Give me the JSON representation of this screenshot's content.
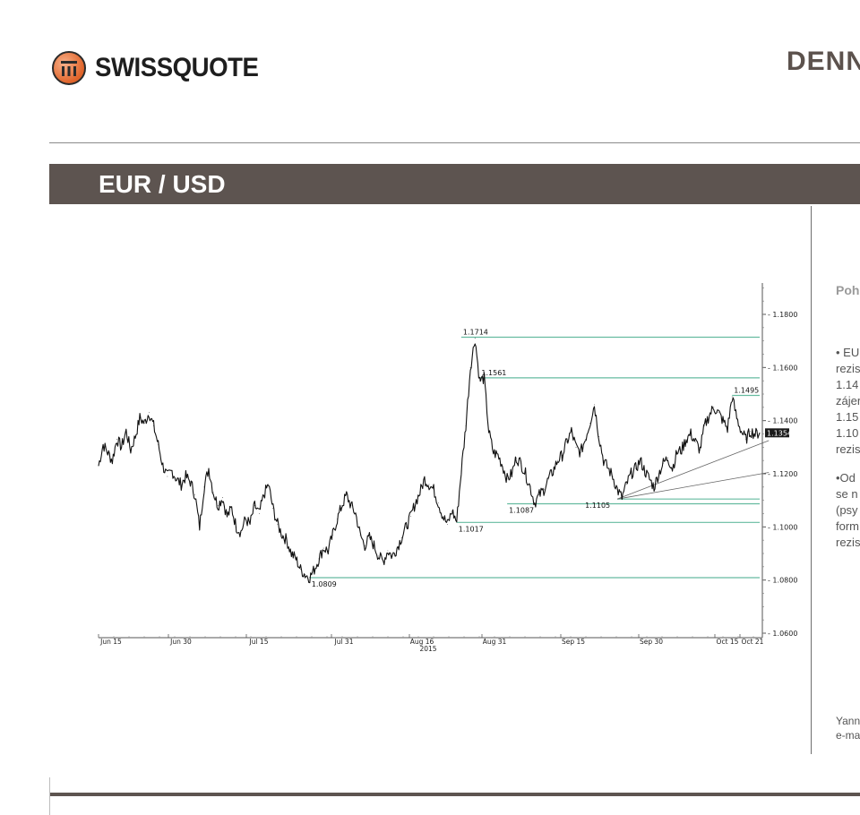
{
  "header": {
    "brand": "SWISSQUOTE",
    "title": "DENN",
    "section_title": "EUR / USD"
  },
  "sidebar_text": {
    "heading": "Poh",
    "lines": [
      "• EU",
      "rezis",
      "1.14",
      "zájer",
      "1.15",
      "1.10",
      "rezis",
      "•Od",
      "se n",
      "(psy",
      "form",
      "rezis"
    ],
    "footer": [
      "Yann",
      "e-ma"
    ]
  },
  "colors": {
    "band": "#5d5450",
    "level_line": "#66bba0",
    "trend_line": "#666666",
    "price": "#111111"
  },
  "chart_data": {
    "type": "line",
    "title": "",
    "xlabel": "",
    "ylabel": "",
    "ylim": [
      1.06,
      1.19
    ],
    "x_tick_labels": [
      "Jun 15",
      "Jun 30",
      "Jul 15",
      "Jul 31",
      "Aug 16",
      "Aug 31",
      "Sep 15",
      "Sep 30",
      "Oct 15",
      "Oct 21"
    ],
    "x_year_label": "2015",
    "y_ticks": [
      1.06,
      1.08,
      1.1,
      1.12,
      1.14,
      1.16,
      1.18
    ],
    "y_tick_labels": [
      "1.0600",
      "1.0800",
      "1.1000",
      "1.1200",
      "1.1400",
      "1.1600",
      "1.1800"
    ],
    "current_price": 1.1354,
    "current_price_label": "1.1354",
    "series": [
      {
        "values": [
          1.123,
          1.131,
          1.128,
          1.125,
          1.133,
          1.13,
          1.136,
          1.129,
          1.134,
          1.141,
          1.139,
          1.143,
          1.138,
          1.131,
          1.123,
          1.119,
          1.121,
          1.118,
          1.116,
          1.119,
          1.117,
          1.112,
          1.1,
          1.115,
          1.122,
          1.113,
          1.108,
          1.111,
          1.104,
          1.107,
          1.1,
          1.098,
          1.103,
          1.101,
          1.108,
          1.105,
          1.112,
          1.116,
          1.107,
          1.101,
          1.097,
          1.095,
          1.09,
          1.088,
          1.084,
          1.082,
          1.081,
          1.084,
          1.088,
          1.092,
          1.091,
          1.097,
          1.103,
          1.108,
          1.112,
          1.108,
          1.105,
          1.097,
          1.093,
          1.096,
          1.093,
          1.089,
          1.087,
          1.091,
          1.089,
          1.092,
          1.096,
          1.1,
          1.104,
          1.109,
          1.113,
          1.118,
          1.116,
          1.114,
          1.109,
          1.104,
          1.101,
          1.106,
          1.102,
          1.121,
          1.138,
          1.16,
          1.171,
          1.155,
          1.156,
          1.136,
          1.128,
          1.127,
          1.123,
          1.118,
          1.12,
          1.126,
          1.124,
          1.12,
          1.115,
          1.109,
          1.112,
          1.114,
          1.118,
          1.121,
          1.125,
          1.127,
          1.132,
          1.136,
          1.13,
          1.128,
          1.133,
          1.139,
          1.146,
          1.134,
          1.125,
          1.122,
          1.119,
          1.114,
          1.111,
          1.116,
          1.12,
          1.122,
          1.125,
          1.121,
          1.118,
          1.115,
          1.12,
          1.124,
          1.126,
          1.122,
          1.128,
          1.129,
          1.133,
          1.135,
          1.132,
          1.129,
          1.138,
          1.142,
          1.145,
          1.143,
          1.14,
          1.137,
          1.149,
          1.141,
          1.136,
          1.133,
          1.136,
          1.135,
          1.1354
        ]
      }
    ],
    "levels": [
      {
        "label": "1.1714",
        "value": 1.1714,
        "from_x": 79
      },
      {
        "label": "1.1561",
        "value": 1.1561,
        "from_x": 83
      },
      {
        "label": "1.1495",
        "value": 1.1495,
        "from_x": 138
      },
      {
        "label": "1.1105",
        "value": 1.1105,
        "from_x": 113
      },
      {
        "label": "1.1087",
        "value": 1.1087,
        "from_x": 89
      },
      {
        "label": "1.1017",
        "value": 1.1017,
        "from_x": 78
      },
      {
        "label": "1.0809",
        "value": 1.0809,
        "from_x": 46
      }
    ],
    "trend_lines": [
      {
        "from": [
          113,
          1.1105
        ],
        "to": [
          146,
          1.1325
        ]
      },
      {
        "from": [
          113,
          1.1105
        ],
        "to": [
          146,
          1.1205
        ]
      }
    ],
    "grid": false,
    "legend": "none"
  }
}
